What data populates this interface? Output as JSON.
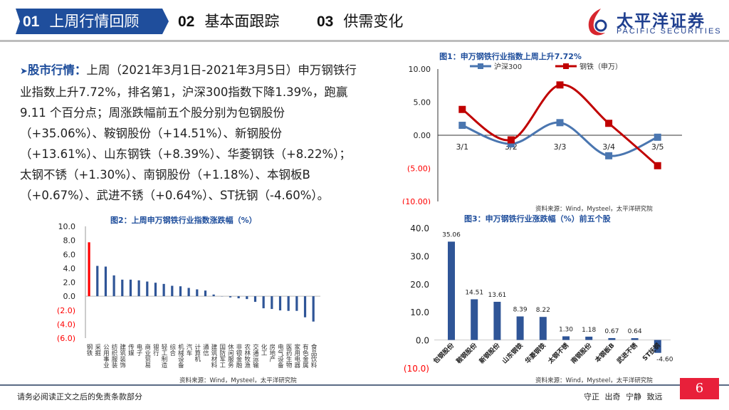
{
  "header": {
    "tabs": [
      {
        "num": "01",
        "label": "上周行情回顾",
        "active": true
      },
      {
        "num": "02",
        "label": "基本面跟踪"
      },
      {
        "num": "03",
        "label": "供需变化"
      }
    ],
    "logo": {
      "cn": "太平洋证券",
      "en": "PACIFIC SECURITIES"
    },
    "accent": "#1f4e9c"
  },
  "paragraph": {
    "lead": "股市行情：",
    "body": "上周（2021年3月1日-2021年3月5日）申万钢铁行业指数上升7.72%，排名第1，沪深300指数下降1.39%，跑赢 9.11 个百分点；周涨跌幅前五个股分别为包钢股份（+35.06%）、鞍钢股份（+14.51%）、新钢股份（+13.61%）、山东钢铁（+8.39%）、华菱钢铁（+8.22%）；太钢不锈（+1.30%）、南钢股份（+1.18%）、本钢板B（+0.67%）、武进不锈（+0.64%）、ST抚钢（-4.60%）。"
  },
  "chart_data": [
    {
      "type": "line",
      "title": "图1：申万钢铁行业指数上周上升7.72%",
      "categories": [
        "3/1",
        "3/2",
        "3/3",
        "3/4",
        "3/5"
      ],
      "series": [
        {
          "name": "沪深300",
          "values": [
            1.5,
            -1.3,
            1.9,
            -3.1,
            -0.3
          ],
          "color": "#4a76b0"
        },
        {
          "name": "钢铁（申万）",
          "values": [
            3.9,
            -0.7,
            7.6,
            1.8,
            -4.6
          ],
          "color": "#c00000"
        }
      ],
      "ylim": [
        -10,
        10
      ],
      "yticks": [
        "10.00",
        "5.00",
        "0.00",
        "(5.00)",
        "(10.00)"
      ],
      "legend": "top",
      "source": "资料来源：Wind，Mysteel，太平洋研究院"
    },
    {
      "type": "bar",
      "title": "图2：上周申万钢铁行业指数涨跌幅（%）",
      "categories": [
        "钢铁",
        "采掘",
        "公用事业",
        "纺织服装",
        "建筑装饰",
        "传媒",
        "电子",
        "商业贸易",
        "银行",
        "轻工制造",
        "综合",
        "机械设备",
        "汽车",
        "计算机",
        "通信",
        "建筑材料",
        "国防军工",
        "休闲服务",
        "非银金融",
        "农林牧渔",
        "交通运输",
        "化工",
        "房地产",
        "电气设备",
        "医药生物",
        "家用电器",
        "有色金属",
        "食品饮料"
      ],
      "values": [
        7.72,
        4.34,
        4.24,
        2.98,
        2.37,
        2.37,
        2.27,
        2.1,
        1.93,
        1.76,
        1.49,
        1.42,
        1.19,
        0.98,
        0.81,
        0.24,
        -0.03,
        -0.17,
        -0.3,
        -0.41,
        -0.81,
        -1.73,
        -1.83,
        -2.03,
        -2.1,
        -2.1,
        -3.02,
        -3.63
      ],
      "highlight_color": "#ff0000",
      "bar_color": "#2f5597",
      "ylim": [
        -6,
        10
      ],
      "yticks": [
        "10.0",
        "8.0",
        "6.0",
        "4.0",
        "2.0",
        "0.0",
        "(2.0)",
        "(4.0)",
        "(6.0)"
      ],
      "source": "资料来源：Wind，Mysteel，太平洋研究院"
    },
    {
      "type": "bar",
      "title": "图3：申万钢铁行业涨跌幅（%）前五个股",
      "categories": [
        "包钢股份",
        "鞍钢股份",
        "新钢股份",
        "山东钢铁",
        "华菱钢铁",
        "太钢不锈",
        "南钢股份",
        "本钢板B",
        "武进不锈",
        "ST抚钢"
      ],
      "values": [
        35.06,
        14.51,
        13.61,
        8.39,
        8.22,
        1.3,
        1.18,
        0.67,
        0.64,
        -4.6
      ],
      "labels": [
        "35.06",
        "14.51",
        "13.61",
        "8.39",
        "8.22",
        "1.30",
        "1.18",
        "0.67",
        "0.64",
        "-4.60"
      ],
      "bar_color": "#2f5597",
      "ylim": [
        -10,
        40
      ],
      "yticks": [
        "40.0",
        "30.0",
        "20.0",
        "10.0",
        "0.0",
        "(10.0)"
      ],
      "source": "资料来源：Wind，Mysteel，太平洋研究院"
    }
  ],
  "footer": {
    "disclaimer": "请务必阅读正文之后的免责条款部分",
    "motto": "守正 出奇 宁静 致远",
    "page": "6"
  }
}
